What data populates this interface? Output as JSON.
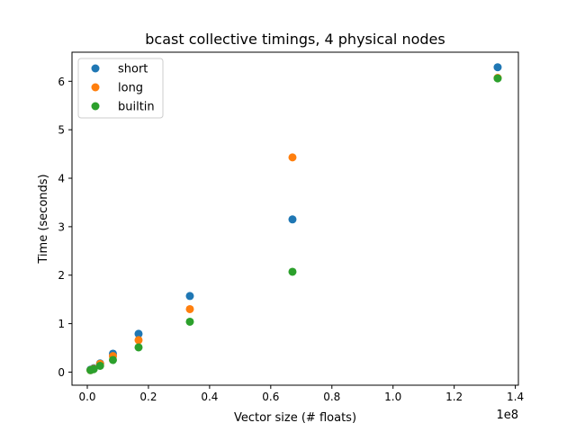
{
  "chart_data": {
    "type": "scatter",
    "title": "bcast collective timings, 4 physical nodes",
    "xlabel": "Vector size (# floats)",
    "ylabel": "Time (seconds)",
    "x_offset_label": "1e8",
    "x_scale": 100000000,
    "xlim": [
      -5000000,
      141000000
    ],
    "ylim": [
      -0.27,
      6.6
    ],
    "x_ticks": [
      0,
      20000000,
      40000000,
      60000000,
      80000000,
      100000000,
      120000000,
      140000000
    ],
    "x_tick_labels": [
      "0.0",
      "0.2",
      "0.4",
      "0.6",
      "0.8",
      "1.0",
      "1.2",
      "1.4"
    ],
    "y_ticks": [
      0,
      1,
      2,
      3,
      4,
      5,
      6
    ],
    "y_tick_labels": [
      "0",
      "1",
      "2",
      "3",
      "4",
      "5",
      "6"
    ],
    "grid": false,
    "legend_position": "top-left",
    "series": [
      {
        "name": "short",
        "color": "#1f77b4",
        "points": [
          [
            1048576,
            0.05
          ],
          [
            2097152,
            0.08
          ],
          [
            4194304,
            0.18
          ],
          [
            8388608,
            0.38
          ],
          [
            16777216,
            0.79
          ],
          [
            33554432,
            1.57
          ],
          [
            67108864,
            3.15
          ],
          [
            134217728,
            6.29
          ]
        ]
      },
      {
        "name": "long",
        "color": "#ff7f0e",
        "points": [
          [
            1048576,
            0.04
          ],
          [
            2097152,
            0.07
          ],
          [
            4194304,
            0.17
          ],
          [
            8388608,
            0.33
          ],
          [
            16777216,
            0.66
          ],
          [
            33554432,
            1.3
          ],
          [
            67108864,
            4.43
          ],
          [
            134217728,
            6.07
          ]
        ]
      },
      {
        "name": "builtin",
        "color": "#2ca02c",
        "points": [
          [
            1048576,
            0.04
          ],
          [
            2097152,
            0.06
          ],
          [
            4194304,
            0.13
          ],
          [
            8388608,
            0.25
          ],
          [
            16777216,
            0.51
          ],
          [
            33554432,
            1.04
          ],
          [
            67108864,
            2.07
          ],
          [
            134217728,
            6.06
          ]
        ]
      }
    ]
  }
}
